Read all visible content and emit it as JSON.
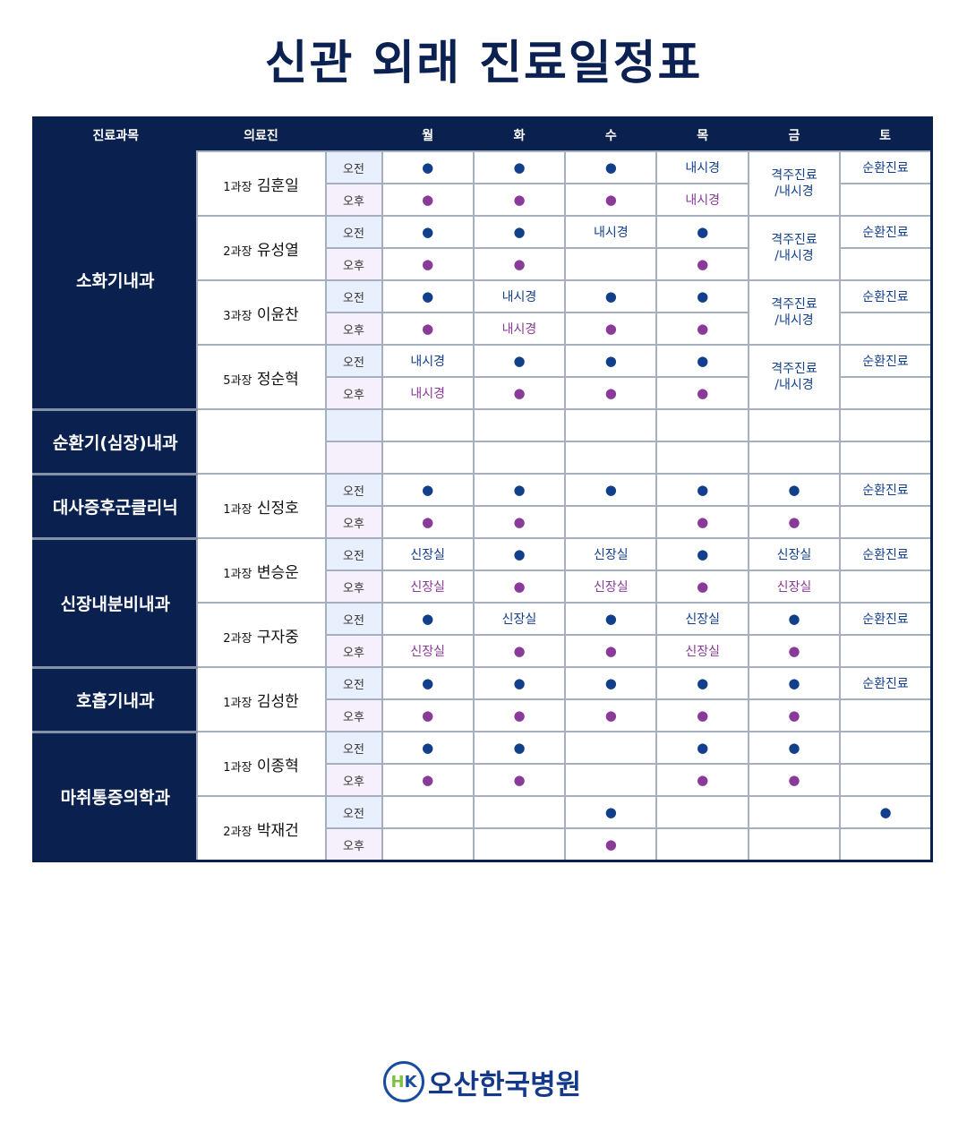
{
  "title": "신관 외래 진료일정표",
  "headers": [
    "진료과목",
    "의료진",
    "",
    "월",
    "화",
    "수",
    "목",
    "금",
    "토"
  ],
  "ampm": {
    "am": "오전",
    "pm": "오후"
  },
  "dot": "●",
  "colors": {
    "header": "#0a2150",
    "am": "#123f8c",
    "pm": "#8a3a98"
  },
  "departments": [
    {
      "name": "소화기내과",
      "fri_merged": "격주진료/내시경",
      "doctors": [
        {
          "title": "1과장",
          "name": "김훈일",
          "am": [
            "●",
            "●",
            "●",
            "내시경",
            "",
            "순환진료"
          ],
          "pm": [
            "●",
            "●",
            "●",
            "내시경",
            "",
            ""
          ]
        },
        {
          "title": "2과장",
          "name": "유성열",
          "am": [
            "●",
            "●",
            "내시경",
            "●",
            "",
            "순환진료"
          ],
          "pm": [
            "●",
            "●",
            "",
            "●",
            "",
            ""
          ]
        },
        {
          "title": "3과장",
          "name": "이윤찬",
          "am": [
            "●",
            "내시경",
            "●",
            "●",
            "",
            "순환진료"
          ],
          "pm": [
            "●",
            "내시경",
            "●",
            "●",
            "",
            ""
          ]
        },
        {
          "title": "5과장",
          "name": "정순혁",
          "am": [
            "내시경",
            "●",
            "●",
            "●",
            "",
            "순환진료"
          ],
          "pm": [
            "내시경",
            "●",
            "●",
            "●",
            "",
            ""
          ]
        }
      ]
    },
    {
      "name": "순환기(심장)내과",
      "blank": true,
      "doctors": [
        {
          "title": "",
          "name": "",
          "am": [
            "",
            "",
            "",
            "",
            "",
            ""
          ],
          "pm": [
            "",
            "",
            "",
            "",
            "",
            ""
          ]
        }
      ]
    },
    {
      "name": "대사증후군클리닉",
      "doctors": [
        {
          "title": "1과장",
          "name": "신정호",
          "am": [
            "●",
            "●",
            "●",
            "●",
            "●",
            "순환진료"
          ],
          "pm": [
            "●",
            "●",
            "",
            "●",
            "●",
            ""
          ]
        }
      ]
    },
    {
      "name": "신장내분비내과",
      "doctors": [
        {
          "title": "1과장",
          "name": "변승운",
          "am": [
            "신장실",
            "●",
            "신장실",
            "●",
            "신장실",
            "순환진료"
          ],
          "pm": [
            "신장실",
            "●",
            "신장실",
            "●",
            "신장실",
            ""
          ]
        },
        {
          "title": "2과장",
          "name": "구자중",
          "am": [
            "●",
            "신장실",
            "●",
            "신장실",
            "●",
            "순환진료"
          ],
          "pm": [
            "신장실",
            "●",
            "●",
            "신장실",
            "●",
            ""
          ]
        }
      ]
    },
    {
      "name": "호흡기내과",
      "doctors": [
        {
          "title": "1과장",
          "name": "김성한",
          "am": [
            "●",
            "●",
            "●",
            "●",
            "●",
            "순환진료"
          ],
          "pm": [
            "●",
            "●",
            "●",
            "●",
            "●",
            ""
          ]
        }
      ]
    },
    {
      "name": "마취통증의학과",
      "doctors": [
        {
          "title": "1과장",
          "name": "이종혁",
          "am": [
            "●",
            "●",
            "",
            "●",
            "●",
            ""
          ],
          "pm": [
            "●",
            "●",
            "",
            "●",
            "●",
            ""
          ]
        },
        {
          "title": "2과장",
          "name": "박재건",
          "am": [
            "",
            "",
            "●",
            "",
            "",
            "●"
          ],
          "pm": [
            "",
            "",
            "●",
            "",
            "",
            ""
          ]
        }
      ]
    }
  ],
  "logo": {
    "mark": "HK",
    "text": "오산한국병원"
  }
}
